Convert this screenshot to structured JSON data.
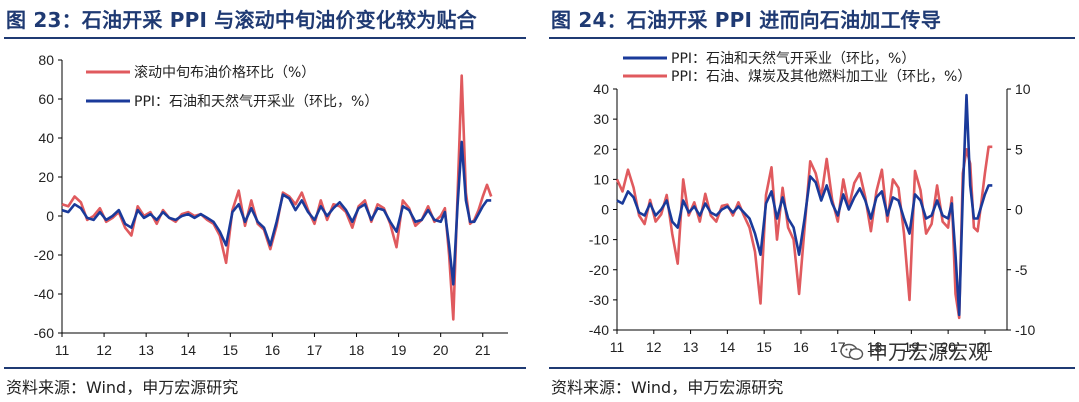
{
  "source_left": "资料来源：Wind，申万宏源研究",
  "source_right": "资料来源：Wind，申万宏源研究",
  "watermark": "申万宏源宏观",
  "watermark_icon": "wechat-icon",
  "colors": {
    "red": "#e05a5e",
    "blue": "#1a3a9a",
    "title": "#1f3a73"
  },
  "chart_data": [
    {
      "type": "line",
      "title": "图 23：石油开采 PPI 与滚动中旬油价变化较为贴合",
      "x_tick_labels": [
        "11",
        "12",
        "13",
        "14",
        "15",
        "16",
        "17",
        "18",
        "19",
        "20",
        "21"
      ],
      "y_ticks": [
        "80",
        "60",
        "40",
        "20",
        "0",
        "-20",
        "-40",
        "-60"
      ],
      "ylim": [
        -60,
        80
      ],
      "xlim": [
        2011,
        2021.6
      ],
      "series": [
        {
          "name": "滚动中旬布油价格环比（%）",
          "color": "#e05a5e",
          "x": [
            2011.0,
            2011.15,
            2011.3,
            2011.45,
            2011.6,
            2011.75,
            2011.9,
            2012.05,
            2012.2,
            2012.35,
            2012.5,
            2012.65,
            2012.8,
            2012.95,
            2013.1,
            2013.25,
            2013.4,
            2013.55,
            2013.7,
            2013.85,
            2014.0,
            2014.15,
            2014.3,
            2014.45,
            2014.6,
            2014.75,
            2014.9,
            2015.05,
            2015.2,
            2015.35,
            2015.5,
            2015.65,
            2015.8,
            2015.95,
            2016.1,
            2016.25,
            2016.4,
            2016.55,
            2016.7,
            2016.85,
            2017.0,
            2017.15,
            2017.3,
            2017.45,
            2017.6,
            2017.75,
            2017.9,
            2018.05,
            2018.2,
            2018.35,
            2018.5,
            2018.65,
            2018.8,
            2018.95,
            2019.1,
            2019.25,
            2019.4,
            2019.55,
            2019.7,
            2019.85,
            2020.0,
            2020.1,
            2020.2,
            2020.3,
            2020.4,
            2020.5,
            2020.6,
            2020.7,
            2020.8,
            2020.9,
            2021.0,
            2021.1,
            2021.2
          ],
          "y": [
            6,
            5,
            10,
            7,
            -2,
            0,
            4,
            -3,
            -1,
            2,
            -6,
            -10,
            5,
            0,
            2,
            -4,
            3,
            -1,
            -3,
            1,
            2,
            0,
            1,
            -2,
            -4,
            -10,
            -24,
            3,
            13,
            -5,
            8,
            -4,
            -7,
            -17,
            -5,
            12,
            10,
            6,
            12,
            3,
            -4,
            8,
            -2,
            6,
            5,
            2,
            -6,
            5,
            8,
            -3,
            6,
            4,
            -4,
            -16,
            8,
            4,
            -5,
            -2,
            5,
            -3,
            0,
            4,
            -20,
            -53,
            10,
            72,
            12,
            -4,
            -2,
            3,
            10,
            16,
            10
          ]
        },
        {
          "name": "PPI：石油和天然气开采业（环比，%）",
          "color": "#1a3a9a",
          "x": [
            2011.0,
            2011.15,
            2011.3,
            2011.45,
            2011.6,
            2011.75,
            2011.9,
            2012.05,
            2012.2,
            2012.35,
            2012.5,
            2012.65,
            2012.8,
            2012.95,
            2013.1,
            2013.25,
            2013.4,
            2013.55,
            2013.7,
            2013.85,
            2014.0,
            2014.15,
            2014.3,
            2014.45,
            2014.6,
            2014.75,
            2014.9,
            2015.05,
            2015.2,
            2015.35,
            2015.5,
            2015.65,
            2015.8,
            2015.95,
            2016.1,
            2016.25,
            2016.4,
            2016.55,
            2016.7,
            2016.85,
            2017.0,
            2017.15,
            2017.3,
            2017.45,
            2017.6,
            2017.75,
            2017.9,
            2018.05,
            2018.2,
            2018.35,
            2018.5,
            2018.65,
            2018.8,
            2018.95,
            2019.1,
            2019.25,
            2019.4,
            2019.55,
            2019.7,
            2019.85,
            2020.0,
            2020.1,
            2020.2,
            2020.3,
            2020.4,
            2020.5,
            2020.6,
            2020.7,
            2020.8,
            2020.9,
            2021.0,
            2021.1,
            2021.2
          ],
          "y": [
            3,
            2,
            6,
            4,
            -1,
            -2,
            2,
            -2,
            0,
            3,
            -4,
            -6,
            3,
            -1,
            1,
            -2,
            2,
            -1,
            -2,
            0,
            1,
            -1,
            1,
            -1,
            -3,
            -8,
            -15,
            2,
            6,
            -3,
            4,
            -3,
            -6,
            -15,
            -3,
            11,
            9,
            3,
            8,
            2,
            -2,
            5,
            0,
            4,
            7,
            3,
            -3,
            4,
            6,
            -2,
            4,
            3,
            -3,
            -8,
            5,
            3,
            -3,
            -2,
            3,
            -2,
            -3,
            2,
            -15,
            -35,
            5,
            38,
            8,
            -3,
            -3,
            1,
            5,
            8,
            8
          ]
        }
      ]
    },
    {
      "type": "line",
      "title": "图 24：石油开采 PPI 进而向石油加工传导",
      "x_tick_labels": [
        "11",
        "12",
        "13",
        "14",
        "15",
        "16",
        "17",
        "18",
        "19",
        "20",
        "21"
      ],
      "y_ticks_left": [
        "40",
        "30",
        "20",
        "10",
        "0",
        "-10",
        "-20",
        "-30",
        "-40"
      ],
      "y_ticks_right": [
        "10",
        "5",
        "0",
        "-5",
        "-10"
      ],
      "ylim_left": [
        -40,
        40
      ],
      "ylim_right": [
        -10,
        10
      ],
      "xlim": [
        2011,
        2021.6
      ],
      "series": [
        {
          "name": "PPI：石油和天然气开采业（环比，%）",
          "color": "#1a3a9a",
          "axis": "left",
          "x": [
            2011.0,
            2011.15,
            2011.3,
            2011.45,
            2011.6,
            2011.75,
            2011.9,
            2012.05,
            2012.2,
            2012.35,
            2012.5,
            2012.65,
            2012.8,
            2012.95,
            2013.1,
            2013.25,
            2013.4,
            2013.55,
            2013.7,
            2013.85,
            2014.0,
            2014.15,
            2014.3,
            2014.45,
            2014.6,
            2014.75,
            2014.9,
            2015.05,
            2015.2,
            2015.35,
            2015.5,
            2015.65,
            2015.8,
            2015.95,
            2016.1,
            2016.25,
            2016.4,
            2016.55,
            2016.7,
            2016.85,
            2017.0,
            2017.15,
            2017.3,
            2017.45,
            2017.6,
            2017.75,
            2017.9,
            2018.05,
            2018.2,
            2018.35,
            2018.5,
            2018.65,
            2018.8,
            2018.95,
            2019.1,
            2019.25,
            2019.4,
            2019.55,
            2019.7,
            2019.85,
            2020.0,
            2020.1,
            2020.2,
            2020.3,
            2020.4,
            2020.5,
            2020.6,
            2020.7,
            2020.8,
            2020.9,
            2021.0,
            2021.1,
            2021.2
          ],
          "y": [
            3,
            2,
            6,
            4,
            -1,
            -2,
            2,
            -2,
            0,
            3,
            -4,
            -6,
            3,
            -1,
            1,
            -2,
            2,
            -1,
            -2,
            0,
            1,
            -1,
            1,
            -1,
            -3,
            -8,
            -15,
            2,
            6,
            -3,
            4,
            -3,
            -6,
            -15,
            -3,
            11,
            9,
            3,
            8,
            2,
            -2,
            5,
            0,
            4,
            7,
            3,
            -3,
            4,
            6,
            -2,
            4,
            3,
            -3,
            -8,
            5,
            3,
            -3,
            -2,
            3,
            -2,
            -3,
            2,
            -15,
            -35,
            5,
            38,
            8,
            -3,
            -3,
            1,
            5,
            8,
            8
          ]
        },
        {
          "name": "PPI：石油、煤炭及其他燃料加工业（环比，%）",
          "color": "#e05a5e",
          "axis": "right",
          "x": [
            2011.0,
            2011.15,
            2011.3,
            2011.45,
            2011.6,
            2011.75,
            2011.9,
            2012.05,
            2012.2,
            2012.35,
            2012.5,
            2012.65,
            2012.8,
            2012.95,
            2013.1,
            2013.25,
            2013.4,
            2013.55,
            2013.7,
            2013.85,
            2014.0,
            2014.15,
            2014.3,
            2014.45,
            2014.6,
            2014.75,
            2014.9,
            2015.05,
            2015.2,
            2015.35,
            2015.5,
            2015.65,
            2015.8,
            2015.95,
            2016.1,
            2016.25,
            2016.4,
            2016.55,
            2016.7,
            2016.85,
            2017.0,
            2017.15,
            2017.3,
            2017.45,
            2017.6,
            2017.75,
            2017.9,
            2018.05,
            2018.2,
            2018.35,
            2018.5,
            2018.65,
            2018.8,
            2018.95,
            2019.1,
            2019.25,
            2019.4,
            2019.55,
            2019.7,
            2019.85,
            2020.0,
            2020.1,
            2020.2,
            2020.3,
            2020.4,
            2020.5,
            2020.6,
            2020.7,
            2020.8,
            2020.9,
            2021.0,
            2021.1,
            2021.2
          ],
          "y": [
            2.5,
            1.5,
            3.3,
            1.8,
            -0.5,
            -1.2,
            0.8,
            -1.0,
            -0.4,
            1.2,
            -2.0,
            -4.5,
            2.5,
            -0.5,
            0.6,
            -1.0,
            1.3,
            -0.5,
            -1.0,
            0.3,
            0.4,
            -0.5,
            0.6,
            -0.5,
            -1.5,
            -3.5,
            -7.8,
            1.2,
            3.5,
            -2.5,
            1.8,
            -1.5,
            -2.5,
            -7.0,
            -1.5,
            4.0,
            3.0,
            1.0,
            4.2,
            0.8,
            -1.0,
            2.5,
            0.2,
            2.2,
            3.0,
            1.0,
            -1.8,
            1.5,
            3.3,
            -1.0,
            2.5,
            1.8,
            -2.0,
            -7.5,
            3.2,
            1.6,
            -2.0,
            -1.2,
            2.0,
            -1.0,
            -1.5,
            1.0,
            -7.0,
            -9.0,
            3.0,
            5.0,
            3.8,
            -1.5,
            -1.8,
            0.5,
            3.0,
            5.2,
            5.2
          ]
        }
      ]
    }
  ]
}
